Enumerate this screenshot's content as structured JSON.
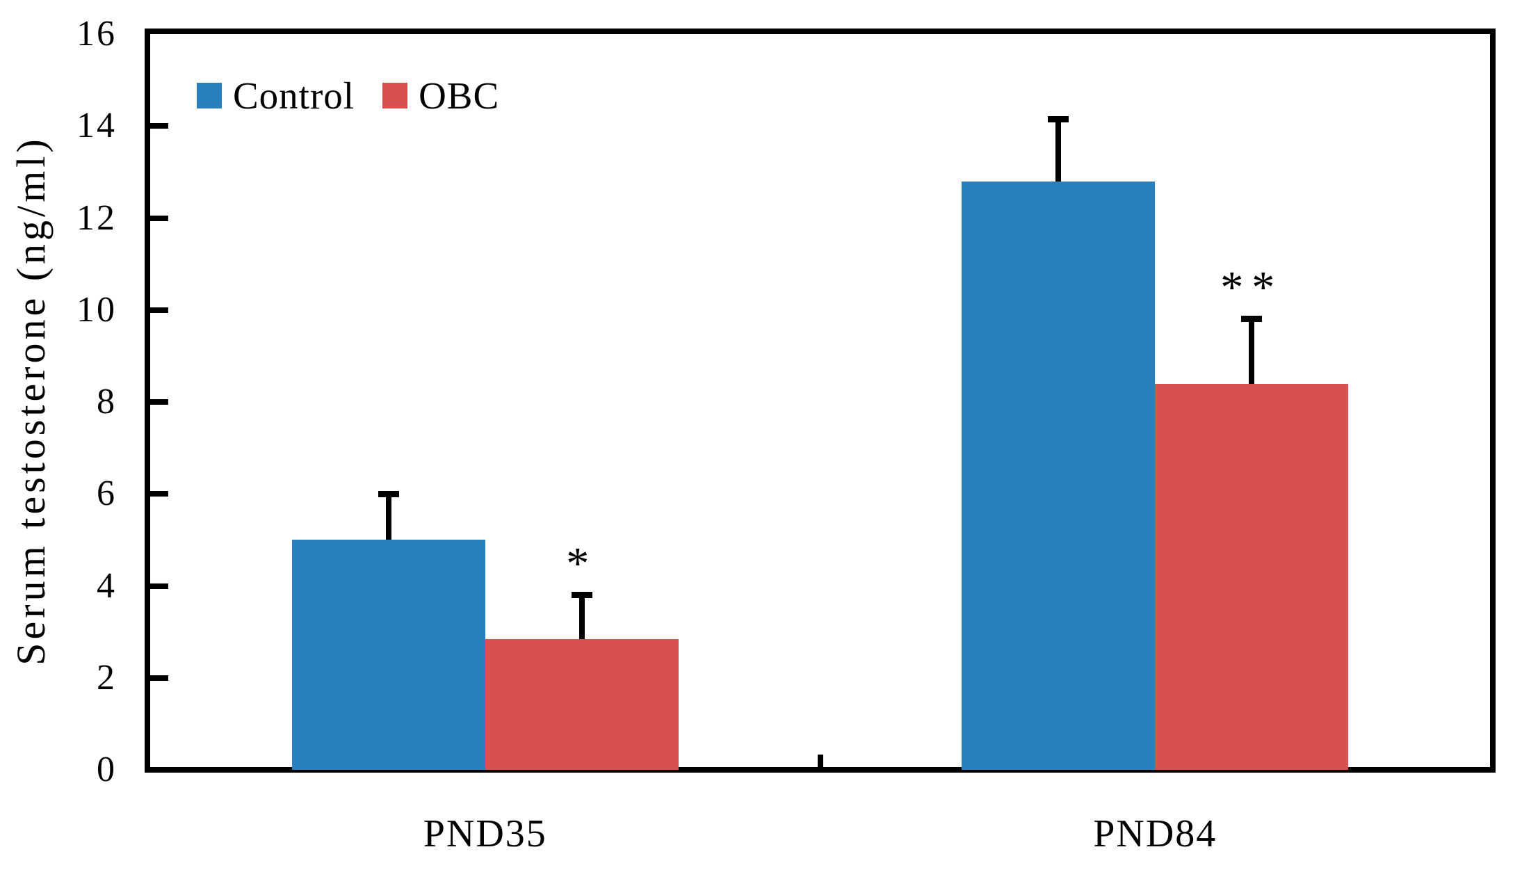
{
  "chart_data": {
    "type": "bar",
    "title": "",
    "xlabel": "",
    "ylabel": "Serum testosterone (ng/ml)",
    "ylim": [
      0,
      16
    ],
    "yticks": [
      0,
      2,
      4,
      6,
      8,
      10,
      12,
      14,
      16
    ],
    "grid": false,
    "legend_position": "top-left-inside",
    "axis_color": "#000000",
    "error_bar_color": "#000000",
    "categories": [
      "PND35",
      "PND84"
    ],
    "series": [
      {
        "name": "Control",
        "color": "#2980BC",
        "values": [
          5.0,
          12.8
        ],
        "errors_plus": [
          1.0,
          1.35
        ],
        "significance": [
          "",
          ""
        ]
      },
      {
        "name": "OBC",
        "color": "#D9514F",
        "values": [
          2.85,
          8.4
        ],
        "errors_plus": [
          0.95,
          1.4
        ],
        "significance": [
          "*",
          "**"
        ]
      }
    ]
  }
}
